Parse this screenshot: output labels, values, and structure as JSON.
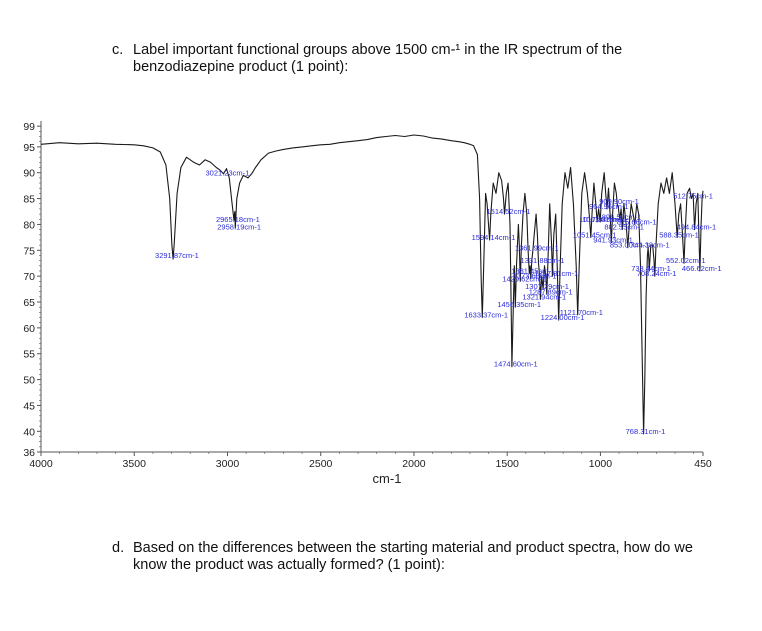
{
  "question_c": {
    "number": "c.",
    "line1": "Label important functional groups above 1500 cm-¹ in the IR spectrum of the",
    "line2": "benzodiazepine product (1 point):"
  },
  "question_d": {
    "number": "d.",
    "line1": "Based on the differences between the starting material and product spectra, how do we",
    "line2": "know the product was actually formed? (1 point):"
  },
  "chart_data": {
    "type": "line",
    "xlabel": "cm-1",
    "ylabel": "",
    "xlim": [
      4000,
      450
    ],
    "ylim": [
      36,
      100
    ],
    "x_reversed": true,
    "x_ticks": [
      4000,
      3500,
      3000,
      2500,
      2000,
      1500,
      1000,
      450
    ],
    "y_ticks": [
      36,
      40,
      45,
      50,
      55,
      60,
      65,
      70,
      75,
      80,
      85,
      90,
      95,
      99
    ],
    "grid": false,
    "colors": {
      "spectrum": "#1a1a1a",
      "peak_labels": "#2b2bd9",
      "axes": "#555555"
    },
    "peak_labels": [
      {
        "x": 3291.87,
        "y": 73.5,
        "text": "3291.87cm-1"
      },
      {
        "x": 3021.23,
        "y": 89.5,
        "text": "3021.23cm-1"
      },
      {
        "x": 2958.19,
        "y": 79.0,
        "text": "2958.19cm-1"
      },
      {
        "x": 2965.18,
        "y": 80.5,
        "text": "2965.18cm-1"
      },
      {
        "x": 1633.37,
        "y": 62.0,
        "text": "1633.37cm-1"
      },
      {
        "x": 1594.14,
        "y": 77.0,
        "text": "1594.14cm-1"
      },
      {
        "x": 1514.52,
        "y": 82.0,
        "text": "1514.52cm-1"
      },
      {
        "x": 1474.6,
        "y": 52.5,
        "text": "1474.60cm-1"
      },
      {
        "x": 1456.35,
        "y": 64.0,
        "text": "1456.35cm-1"
      },
      {
        "x": 1429.62,
        "y": 69.0,
        "text": "1429.62cm-1"
      },
      {
        "x": 1381.45,
        "y": 70.5,
        "text": "1381.45cm-1"
      },
      {
        "x": 1373.68,
        "y": 69.5,
        "text": "1373.68cm-1"
      },
      {
        "x": 1361.99,
        "y": 75.0,
        "text": "1361.99cm-1"
      },
      {
        "x": 1331.88,
        "y": 72.5,
        "text": "1331.88cm-1"
      },
      {
        "x": 1307.29,
        "y": 67.5,
        "text": "1307.29cm-1"
      },
      {
        "x": 1287.89,
        "y": 66.5,
        "text": "1287.89cm-1"
      },
      {
        "x": 1321.94,
        "y": 65.5,
        "text": "1321.94cm-1"
      },
      {
        "x": 1257.81,
        "y": 70.0,
        "text": "1257.81cm-1"
      },
      {
        "x": 1121.7,
        "y": 62.5,
        "text": "1121.70cm-1"
      },
      {
        "x": 1224.0,
        "y": 61.5,
        "text": "1224.00cm-1"
      },
      {
        "x": 1051.45,
        "y": 77.5,
        "text": "1051.45cm-1"
      },
      {
        "x": 1017.84,
        "y": 80.5,
        "text": "1017.84cm-1"
      },
      {
        "x": 1001.01,
        "y": 80.5,
        "text": "1001.01cm-1"
      },
      {
        "x": 941.93,
        "y": 76.5,
        "text": "941.93cm-1"
      },
      {
        "x": 909.9,
        "y": 84.0,
        "text": "909.90cm-1"
      },
      {
        "x": 964.96,
        "y": 83.0,
        "text": "964.96cm-1"
      },
      {
        "x": 896.5,
        "y": 81.0,
        "text": "896.50cm-1"
      },
      {
        "x": 882.55,
        "y": 79.0,
        "text": "882.55cm-1"
      },
      {
        "x": 853.0,
        "y": 75.5,
        "text": "853.00cm-1"
      },
      {
        "x": 768.31,
        "y": 39.5,
        "text": "768.31cm-1"
      },
      {
        "x": 738.44,
        "y": 71.0,
        "text": "738.44cm-1"
      },
      {
        "x": 708.24,
        "y": 70.0,
        "text": "708.24cm-1"
      },
      {
        "x": 744.38,
        "y": 75.5,
        "text": "744.38cm-1"
      },
      {
        "x": 815.66,
        "y": 80.0,
        "text": "815.66cm-1"
      },
      {
        "x": 588.35,
        "y": 77.5,
        "text": "588.35cm-1"
      },
      {
        "x": 552.02,
        "y": 72.5,
        "text": "552.02cm-1"
      },
      {
        "x": 494.84,
        "y": 79.0,
        "text": "494.84cm-1"
      },
      {
        "x": 466.62,
        "y": 71.0,
        "text": "466.62cm-1"
      },
      {
        "x": 512.75,
        "y": 85.0,
        "text": "512.75cm-1"
      }
    ],
    "spectrum": [
      [
        4000,
        95.5
      ],
      [
        3900,
        95.8
      ],
      [
        3800,
        95.6
      ],
      [
        3700,
        95.7
      ],
      [
        3600,
        95.5
      ],
      [
        3500,
        95.4
      ],
      [
        3450,
        95.2
      ],
      [
        3400,
        94.8
      ],
      [
        3360,
        94.0
      ],
      [
        3330,
        91.5
      ],
      [
        3310,
        85.0
      ],
      [
        3298,
        76.0
      ],
      [
        3291.87,
        73.3
      ],
      [
        3285,
        76.5
      ],
      [
        3270,
        86.0
      ],
      [
        3250,
        91.0
      ],
      [
        3220,
        93.0
      ],
      [
        3180,
        92.0
      ],
      [
        3150,
        91.5
      ],
      [
        3120,
        92.5
      ],
      [
        3090,
        92.0
      ],
      [
        3060,
        91.0
      ],
      [
        3040,
        90.5
      ],
      [
        3021.23,
        89.8
      ],
      [
        3005,
        90.8
      ],
      [
        2990,
        89.0
      ],
      [
        2975,
        84.0
      ],
      [
        2965.18,
        80.8
      ],
      [
        2961,
        82.5
      ],
      [
        2958.19,
        79.3
      ],
      [
        2950,
        85.0
      ],
      [
        2935,
        88.0
      ],
      [
        2915,
        89.5
      ],
      [
        2890,
        89.0
      ],
      [
        2870,
        89.8
      ],
      [
        2850,
        91.0
      ],
      [
        2820,
        92.5
      ],
      [
        2780,
        93.8
      ],
      [
        2740,
        94.2
      ],
      [
        2700,
        94.5
      ],
      [
        2650,
        94.8
      ],
      [
        2600,
        95.0
      ],
      [
        2550,
        95.2
      ],
      [
        2500,
        95.4
      ],
      [
        2450,
        95.5
      ],
      [
        2400,
        95.8
      ],
      [
        2350,
        96.0
      ],
      [
        2300,
        96.2
      ],
      [
        2250,
        96.4
      ],
      [
        2200,
        96.8
      ],
      [
        2150,
        97.0
      ],
      [
        2100,
        97.2
      ],
      [
        2050,
        97.0
      ],
      [
        2000,
        97.3
      ],
      [
        1950,
        97.1
      ],
      [
        1900,
        96.7
      ],
      [
        1850,
        96.5
      ],
      [
        1800,
        96.2
      ],
      [
        1760,
        96.0
      ],
      [
        1730,
        95.8
      ],
      [
        1700,
        95.5
      ],
      [
        1680,
        95.2
      ],
      [
        1660,
        93.5
      ],
      [
        1648,
        85.0
      ],
      [
        1640,
        70.0
      ],
      [
        1633.37,
        62.0
      ],
      [
        1626,
        72.0
      ],
      [
        1616,
        86.0
      ],
      [
        1608,
        84.0
      ],
      [
        1600,
        80.0
      ],
      [
        1594.14,
        77.0
      ],
      [
        1588,
        82.0
      ],
      [
        1575,
        88.0
      ],
      [
        1560,
        86.0
      ],
      [
        1545,
        90.0
      ],
      [
        1530,
        88.5
      ],
      [
        1520,
        85.0
      ],
      [
        1514.52,
        82.0
      ],
      [
        1505,
        86.0
      ],
      [
        1495,
        88.0
      ],
      [
        1485,
        80.0
      ],
      [
        1478,
        62.0
      ],
      [
        1474.6,
        52.5
      ],
      [
        1470,
        60.0
      ],
      [
        1462,
        72.0
      ],
      [
        1456.35,
        64.0
      ],
      [
        1450,
        72.0
      ],
      [
        1440,
        80.0
      ],
      [
        1435,
        76.0
      ],
      [
        1429.62,
        69.0
      ],
      [
        1424,
        76.0
      ],
      [
        1415,
        82.0
      ],
      [
        1405,
        86.0
      ],
      [
        1395,
        82.0
      ],
      [
        1388,
        75.0
      ],
      [
        1381.45,
        70.5
      ],
      [
        1377,
        72.0
      ],
      [
        1373.68,
        69.5
      ],
      [
        1368,
        73.0
      ],
      [
        1361.99,
        75.0
      ],
      [
        1355,
        78.0
      ],
      [
        1345,
        82.0
      ],
      [
        1338,
        78.0
      ],
      [
        1331.88,
        72.5
      ],
      [
        1326,
        70.0
      ],
      [
        1321.94,
        65.5
      ],
      [
        1315,
        70.0
      ],
      [
        1307.29,
        67.5
      ],
      [
        1300,
        72.0
      ],
      [
        1293,
        70.0
      ],
      [
        1287.89,
        66.5
      ],
      [
        1282,
        72.0
      ],
      [
        1272,
        84.0
      ],
      [
        1262,
        76.0
      ],
      [
        1257.81,
        70.0
      ],
      [
        1250,
        78.0
      ],
      [
        1240,
        82.0
      ],
      [
        1232,
        72.0
      ],
      [
        1224.0,
        61.5
      ],
      [
        1216,
        72.0
      ],
      [
        1205,
        84.0
      ],
      [
        1190,
        90.0
      ],
      [
        1175,
        87.0
      ],
      [
        1160,
        91.0
      ],
      [
        1145,
        84.0
      ],
      [
        1130,
        72.0
      ],
      [
        1121.7,
        62.5
      ],
      [
        1114,
        72.0
      ],
      [
        1100,
        86.0
      ],
      [
        1085,
        90.0
      ],
      [
        1070,
        86.0
      ],
      [
        1060,
        82.0
      ],
      [
        1051.45,
        77.5
      ],
      [
        1045,
        82.0
      ],
      [
        1035,
        88.0
      ],
      [
        1025,
        84.0
      ],
      [
        1017.84,
        80.5
      ],
      [
        1010,
        83.0
      ],
      [
        1001.01,
        80.5
      ],
      [
        993,
        86.0
      ],
      [
        980,
        90.0
      ],
      [
        972,
        86.0
      ],
      [
        964.96,
        83.0
      ],
      [
        957,
        87.0
      ],
      [
        948,
        82.0
      ],
      [
        941.93,
        76.5
      ],
      [
        935,
        82.0
      ],
      [
        925,
        88.0
      ],
      [
        915,
        86.0
      ],
      [
        909.9,
        84.0
      ],
      [
        903,
        83.0
      ],
      [
        896.5,
        81.0
      ],
      [
        889,
        83.0
      ],
      [
        882.55,
        79.0
      ],
      [
        874,
        84.0
      ],
      [
        862,
        80.0
      ],
      [
        853.0,
        75.5
      ],
      [
        845,
        80.0
      ],
      [
        835,
        84.0
      ],
      [
        825,
        82.0
      ],
      [
        815.66,
        80.0
      ],
      [
        805,
        84.0
      ],
      [
        795,
        82.0
      ],
      [
        785,
        72.0
      ],
      [
        775,
        52.0
      ],
      [
        768.31,
        39.5
      ],
      [
        762,
        50.0
      ],
      [
        755,
        66.0
      ],
      [
        748,
        74.0
      ],
      [
        744.38,
        75.5
      ],
      [
        740,
        73.0
      ],
      [
        738.44,
        71.0
      ],
      [
        730,
        76.0
      ],
      [
        720,
        76.0
      ],
      [
        713,
        73.0
      ],
      [
        708.24,
        70.0
      ],
      [
        702,
        76.0
      ],
      [
        690,
        84.0
      ],
      [
        675,
        88.0
      ],
      [
        660,
        86.0
      ],
      [
        645,
        89.0
      ],
      [
        630,
        86.0
      ],
      [
        615,
        90.0
      ],
      [
        600,
        84.0
      ],
      [
        588.35,
        77.5
      ],
      [
        580,
        82.0
      ],
      [
        570,
        84.0
      ],
      [
        560,
        78.0
      ],
      [
        552.02,
        72.5
      ],
      [
        545,
        79.0
      ],
      [
        535,
        86.0
      ],
      [
        522,
        87.0
      ],
      [
        512.75,
        85.0
      ],
      [
        503,
        86.0
      ],
      [
        494.84,
        79.0
      ],
      [
        487,
        84.0
      ],
      [
        478,
        86.0
      ],
      [
        472,
        78.0
      ],
      [
        466.62,
        71.0
      ],
      [
        460,
        80.0
      ],
      [
        455,
        85.0
      ],
      [
        450,
        86.5
      ]
    ]
  }
}
